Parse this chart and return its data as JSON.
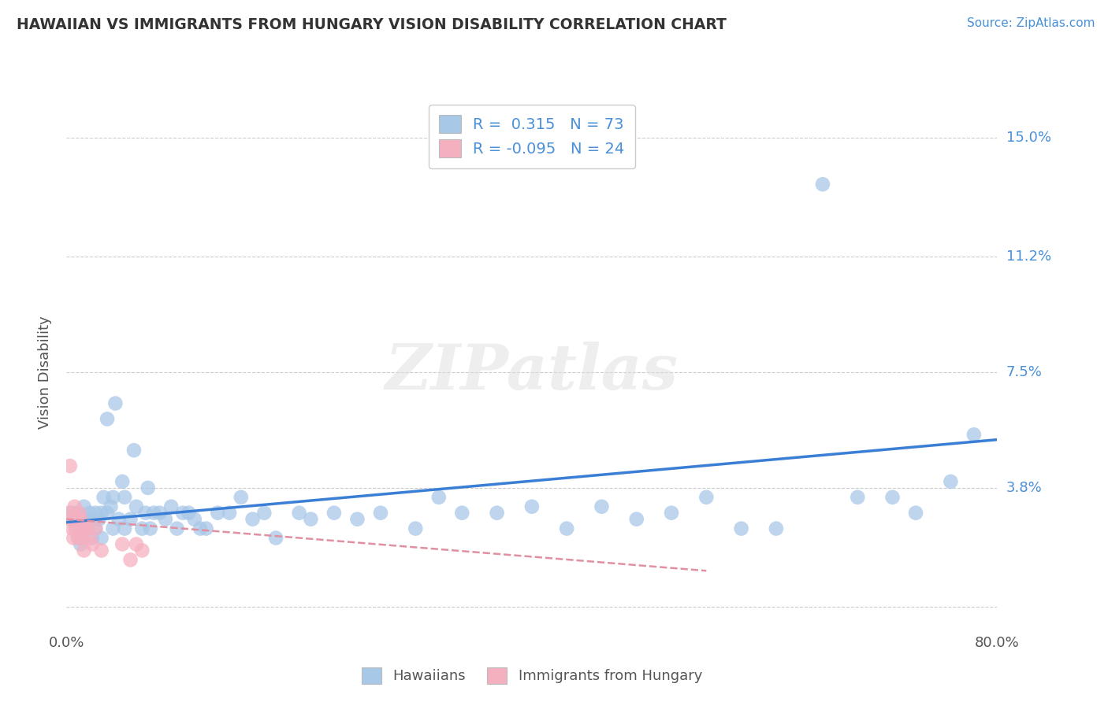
{
  "title": "HAWAIIAN VS IMMIGRANTS FROM HUNGARY VISION DISABILITY CORRELATION CHART",
  "source_text": "Source: ZipAtlas.com",
  "ylabel": "Vision Disability",
  "xlim": [
    0.0,
    0.8
  ],
  "ylim": [
    -0.008,
    0.158
  ],
  "ytick_vals": [
    0.0,
    0.038,
    0.075,
    0.112,
    0.15
  ],
  "ytick_labels": [
    "",
    "3.8%",
    "7.5%",
    "11.2%",
    "15.0%"
  ],
  "xtick_vals": [
    0.0,
    0.1,
    0.2,
    0.3,
    0.4,
    0.5,
    0.6,
    0.7,
    0.8
  ],
  "xtick_labels": [
    "0.0%",
    "",
    "",
    "",
    "",
    "",
    "",
    "",
    "80.0%"
  ],
  "background_color": "#ffffff",
  "hawaiian_dot_color": "#a8c8e8",
  "hungary_dot_color": "#f5b0c0",
  "trendline_blue": "#3a7fd5",
  "trendline_pink": "#e090a0",
  "r_hawaiian": 0.315,
  "n_hawaiian": 73,
  "r_hungary": -0.095,
  "n_hungary": 24,
  "watermark_text": "ZIPatlas",
  "hawaiian_x": [
    0.005,
    0.008,
    0.01,
    0.01,
    0.012,
    0.015,
    0.015,
    0.018,
    0.02,
    0.022,
    0.022,
    0.025,
    0.025,
    0.028,
    0.03,
    0.03,
    0.032,
    0.035,
    0.035,
    0.038,
    0.04,
    0.04,
    0.042,
    0.045,
    0.048,
    0.05,
    0.05,
    0.055,
    0.058,
    0.06,
    0.065,
    0.068,
    0.07,
    0.072,
    0.075,
    0.08,
    0.085,
    0.09,
    0.095,
    0.1,
    0.105,
    0.11,
    0.115,
    0.12,
    0.13,
    0.14,
    0.15,
    0.16,
    0.17,
    0.18,
    0.2,
    0.21,
    0.23,
    0.25,
    0.27,
    0.3,
    0.32,
    0.34,
    0.37,
    0.4,
    0.43,
    0.46,
    0.49,
    0.52,
    0.55,
    0.58,
    0.61,
    0.65,
    0.68,
    0.71,
    0.73,
    0.76,
    0.78
  ],
  "hawaiian_y": [
    0.03,
    0.025,
    0.022,
    0.03,
    0.02,
    0.028,
    0.032,
    0.025,
    0.03,
    0.022,
    0.028,
    0.025,
    0.03,
    0.028,
    0.022,
    0.03,
    0.035,
    0.06,
    0.03,
    0.032,
    0.035,
    0.025,
    0.065,
    0.028,
    0.04,
    0.035,
    0.025,
    0.028,
    0.05,
    0.032,
    0.025,
    0.03,
    0.038,
    0.025,
    0.03,
    0.03,
    0.028,
    0.032,
    0.025,
    0.03,
    0.03,
    0.028,
    0.025,
    0.025,
    0.03,
    0.03,
    0.035,
    0.028,
    0.03,
    0.022,
    0.03,
    0.028,
    0.03,
    0.028,
    0.03,
    0.025,
    0.035,
    0.03,
    0.03,
    0.032,
    0.025,
    0.032,
    0.028,
    0.03,
    0.035,
    0.025,
    0.025,
    0.135,
    0.035,
    0.035,
    0.03,
    0.04,
    0.055
  ],
  "hungary_x": [
    0.002,
    0.003,
    0.004,
    0.005,
    0.006,
    0.007,
    0.008,
    0.009,
    0.01,
    0.011,
    0.012,
    0.013,
    0.014,
    0.015,
    0.016,
    0.018,
    0.02,
    0.022,
    0.025,
    0.03,
    0.048,
    0.055,
    0.06,
    0.065
  ],
  "hungary_y": [
    0.03,
    0.045,
    0.028,
    0.025,
    0.022,
    0.032,
    0.025,
    0.028,
    0.022,
    0.03,
    0.028,
    0.022,
    0.025,
    0.018,
    0.025,
    0.025,
    0.022,
    0.02,
    0.025,
    0.018,
    0.02,
    0.015,
    0.02,
    0.018
  ]
}
